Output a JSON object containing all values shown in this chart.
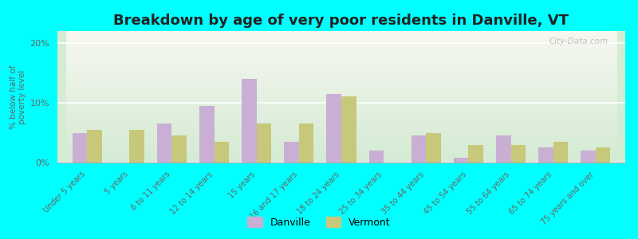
{
  "title": "Breakdown by age of very poor residents in Danville, VT",
  "ylabel": "% below half of\npoverty level",
  "categories": [
    "Under 5 years",
    "5 years",
    "6 to 11 years",
    "12 to 14 years",
    "15 years",
    "16 and 17 years",
    "18 to 24 years",
    "25 to 34 years",
    "35 to 44 years",
    "45 to 54 years",
    "55 to 64 years",
    "65 to 74 years",
    "75 years and over"
  ],
  "danville": [
    5.0,
    0.0,
    6.5,
    9.5,
    14.0,
    3.5,
    11.5,
    2.0,
    4.5,
    0.8,
    4.5,
    2.5,
    2.0
  ],
  "vermont": [
    5.5,
    5.5,
    4.5,
    3.5,
    6.5,
    6.5,
    11.0,
    0.0,
    5.0,
    3.0,
    3.0,
    3.5,
    2.5
  ],
  "danville_color": "#c9afd4",
  "vermont_color": "#c8c87a",
  "background_color": "#00ffff",
  "plot_bg_top": "#f8f8f2",
  "plot_bg_bottom": "#d4ecd4",
  "ylim": [
    0,
    22
  ],
  "yticks": [
    0,
    10,
    20
  ],
  "ytick_labels": [
    "0%",
    "10%",
    "20%"
  ],
  "title_fontsize": 13,
  "label_fontsize": 7,
  "bar_width": 0.35,
  "legend_labels": [
    "Danville",
    "Vermont"
  ],
  "watermark": "City-Data.com"
}
